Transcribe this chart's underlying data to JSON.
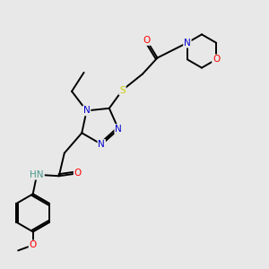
{
  "bg_color": "#e8e8e8",
  "bond_color": "#000000",
  "atom_colors": {
    "N": "#0000cc",
    "O": "#ff0000",
    "S": "#cccc00",
    "NH": "#4a9a8a",
    "C": "#000000"
  },
  "lw": 1.4,
  "fs": 7.5
}
